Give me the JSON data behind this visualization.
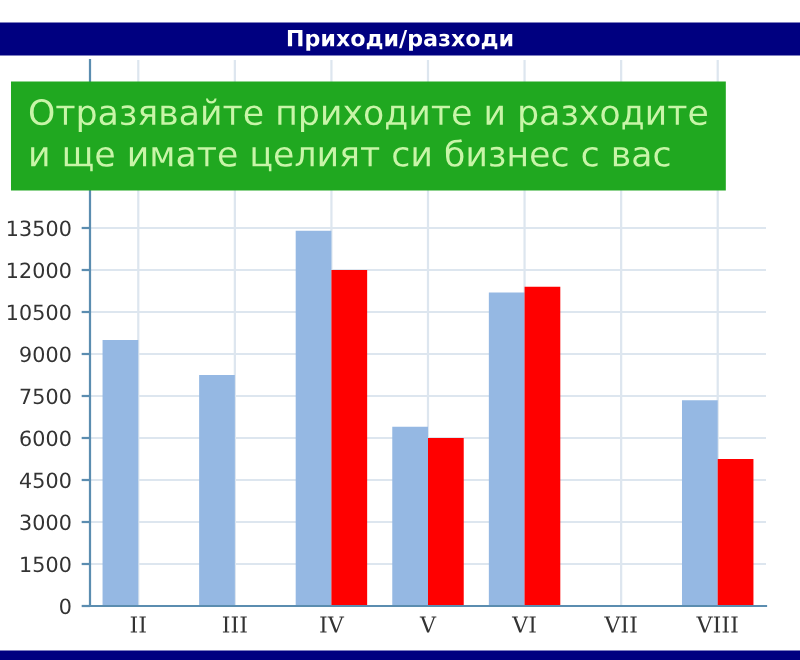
{
  "chart_data": {
    "type": "bar",
    "title": "Приходи/разходи",
    "categories": [
      "II",
      "III",
      "IV",
      "V",
      "VI",
      "VII",
      "VIII"
    ],
    "series": [
      {
        "color": "#95b8e3",
        "values": [
          9500,
          8250,
          13400,
          6400,
          11200,
          null,
          7350
        ]
      },
      {
        "color": "#ff0000",
        "values": [
          null,
          null,
          12000,
          6000,
          11400,
          null,
          5250
        ]
      }
    ],
    "ylim": [
      0,
      19500
    ],
    "yticks": [
      0,
      1500,
      3000,
      4500,
      6000,
      7500,
      9000,
      10500,
      12000,
      13500
    ],
    "grid": true,
    "annotations": [
      "Отразявайте приходите и разходите\nи ще имате целият си бизнес с вас"
    ]
  }
}
